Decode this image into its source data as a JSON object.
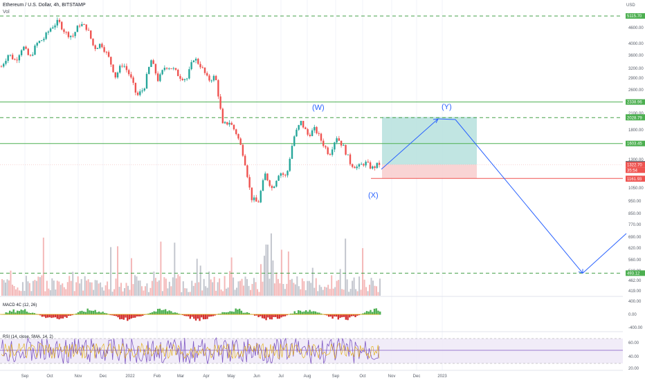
{
  "header": {
    "title": "Ethereum / U.S. Dollar, 4h, BITSTAMP",
    "volume_label": "Vol",
    "currency": "USD"
  },
  "macd": {
    "label": "MACD 4C (12, 26)",
    "ticks": [
      "400.00",
      "0.00",
      "-400.00"
    ]
  },
  "rsi": {
    "label": "RSI (14, close, SMA, 14, 2)",
    "ticks": [
      "60.00",
      "40.00",
      "20.00"
    ]
  },
  "waves": {
    "w": "(W)",
    "x": "(X)",
    "y": "(Y)"
  },
  "colors": {
    "up": "#26a69a",
    "down": "#ef5350",
    "hline_green": "#4caf50",
    "dash_green": "#43a047",
    "arrow": "#2962ff",
    "rsi_line": "#7e57c2",
    "profit": "#b2dfdb",
    "loss": "#f8c9c9"
  },
  "chart_data": {
    "type": "candlestick",
    "title": "Ethereum / U.S. Dollar, 4h, BITSTAMP",
    "x_ticks": [
      "Sep",
      "Oct",
      "Nov",
      "Dec",
      "2022",
      "Feb",
      "Mar",
      "Apr",
      "May",
      "Jun",
      "Jul",
      "Aug",
      "Sep",
      "Oct",
      "Nov",
      "Dec",
      "2023"
    ],
    "y_ticks": [
      "4600.00",
      "4000.00",
      "3600.00",
      "3200.00",
      "2900.00",
      "2600.00",
      "2100.00",
      "1800.00",
      "1300.00",
      "1050.00",
      "950.00",
      "850.00",
      "770.00",
      "690.00",
      "620.00",
      "560.00",
      "510.00",
      "462.00",
      "419.00"
    ],
    "price_path": [
      3230,
      3620,
      3400,
      3890,
      3480,
      3980,
      4180,
      4620,
      4860,
      4380,
      4250,
      4760,
      4590,
      3810,
      3980,
      3520,
      2950,
      3330,
      2980,
      2460,
      2650,
      3420,
      2840,
      3250,
      3180,
      2950,
      2880,
      3500,
      3240,
      2850,
      2950,
      1890,
      1950,
      1750,
      1430,
      980,
      930,
      1210,
      1060,
      1240,
      1180,
      1690,
      1950,
      1730,
      1830,
      1620,
      1450,
      1710,
      1550,
      1330,
      1290,
      1350,
      1280,
      1333
    ],
    "horizontal_levels": [
      {
        "value": "5115.70",
        "style": "dashed",
        "color": "green"
      },
      {
        "value": "2338.96",
        "style": "solid",
        "color": "green"
      },
      {
        "value": "2040.57",
        "style": "price-tag",
        "color": "green"
      },
      {
        "value": "2028.79",
        "style": "dashed",
        "color": "green"
      },
      {
        "value": "1603.45",
        "style": "solid",
        "color": "green"
      },
      {
        "value": "1333.35",
        "style": "price-tag",
        "color": "gray"
      },
      {
        "value": "1322.70",
        "style": "price-tag",
        "color": "red"
      },
      {
        "value": "35:54",
        "style": "countdown",
        "color": "red"
      },
      {
        "value": "1166.87",
        "style": "solid",
        "color": "red"
      },
      {
        "value": "1161.93",
        "style": "price-tag",
        "color": "red"
      },
      {
        "value": "493.12",
        "style": "dashed",
        "color": "green"
      }
    ],
    "position": {
      "entry": "1322.70",
      "stop": "1166.87",
      "target": "2040.57"
    },
    "projection": {
      "start": "1322.70",
      "y_peak": "2040.57",
      "end_low": "493.12"
    }
  }
}
